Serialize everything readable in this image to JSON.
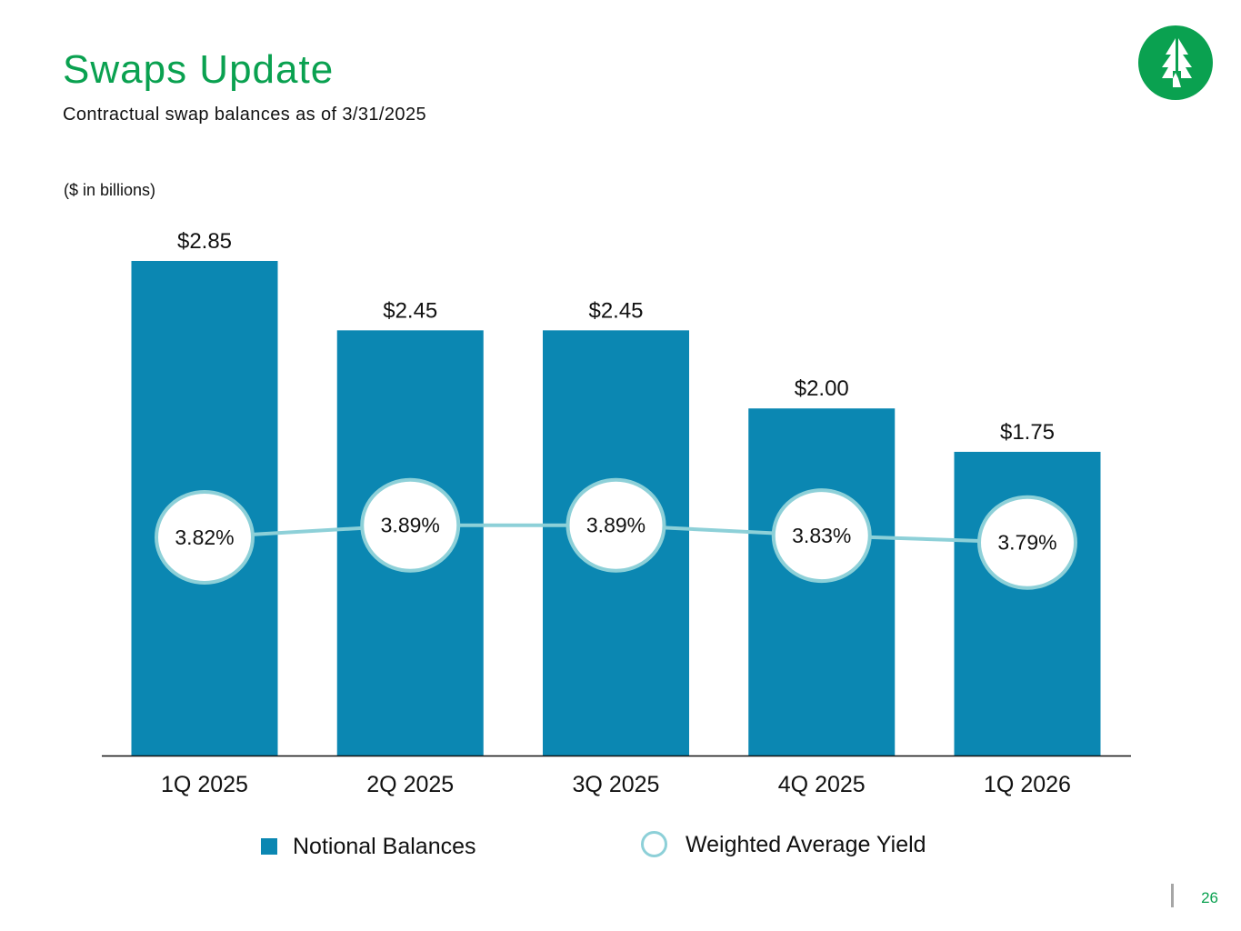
{
  "header": {
    "title": "Swaps Update",
    "subtitle": "Contractual swap balances as of 3/31/2025",
    "units_note": "($ in billions)"
  },
  "footer": {
    "page_number": "26"
  },
  "logo": {
    "icon": "tree-logo-icon",
    "color": "#0aa150"
  },
  "colors": {
    "bar": "#0b87b2",
    "line": "#8dd0d8",
    "title": "#0aa150"
  },
  "chart_data": {
    "type": "bar",
    "categories": [
      "1Q 2025",
      "2Q 2025",
      "3Q 2025",
      "4Q 2025",
      "1Q 2026"
    ],
    "series": [
      {
        "name": "Notional Balances",
        "type": "bar",
        "values": [
          2.85,
          2.45,
          2.45,
          2.0,
          1.75
        ],
        "labels": [
          "$2.85",
          "$2.45",
          "$2.45",
          "$2.00",
          "$1.75"
        ]
      },
      {
        "name": "Weighted Average Yield",
        "type": "line",
        "values": [
          3.82,
          3.89,
          3.89,
          3.83,
          3.79
        ],
        "labels": [
          "3.82%",
          "3.89%",
          "3.89%",
          "3.83%",
          "3.79%"
        ]
      }
    ],
    "legend": [
      {
        "label": "Notional Balances",
        "marker": "square"
      },
      {
        "label": "Weighted Average Yield",
        "marker": "circle"
      }
    ],
    "legend_position": "bottom",
    "grid": false
  }
}
